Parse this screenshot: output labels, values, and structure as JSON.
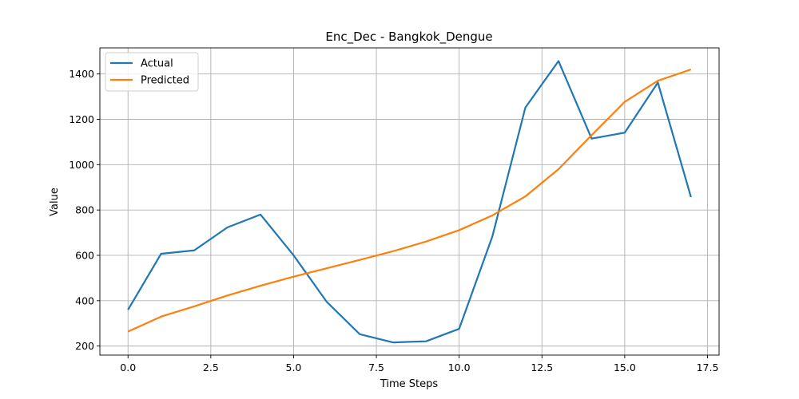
{
  "chart_data": {
    "type": "line",
    "title": "Enc_Dec - Bangkok_Dengue",
    "xlabel": "Time Steps",
    "ylabel": "Value",
    "xlim": [
      -0.85,
      17.85
    ],
    "ylim": [
      160,
      1515
    ],
    "xticks": [
      0.0,
      2.5,
      5.0,
      7.5,
      10.0,
      12.5,
      15.0,
      17.5
    ],
    "xtick_labels": [
      "0.0",
      "2.5",
      "5.0",
      "7.5",
      "10.0",
      "12.5",
      "15.0",
      "17.5"
    ],
    "yticks": [
      200,
      400,
      600,
      800,
      1000,
      1200,
      1400
    ],
    "ytick_labels": [
      "200",
      "400",
      "600",
      "800",
      "1000",
      "1200",
      "1400"
    ],
    "grid": true,
    "legend": {
      "placement": "top-left"
    },
    "x": [
      0,
      1,
      2,
      3,
      4,
      5,
      6,
      7,
      8,
      9,
      10,
      11,
      12,
      13,
      14,
      15,
      16,
      17
    ],
    "series": [
      {
        "name": "Actual",
        "color": "#1f77b4",
        "values": [
          360,
          607,
          622,
          723,
          780,
          600,
          395,
          252,
          216,
          221,
          276,
          682,
          1252,
          1457,
          1115,
          1141,
          1362,
          857
        ]
      },
      {
        "name": "Predicted",
        "color": "#ff7f0e",
        "values": [
          264,
          330,
          375,
          423,
          466,
          506,
          543,
          580,
          618,
          661,
          711,
          776,
          860,
          980,
          1130,
          1277,
          1370,
          1420
        ]
      }
    ]
  }
}
